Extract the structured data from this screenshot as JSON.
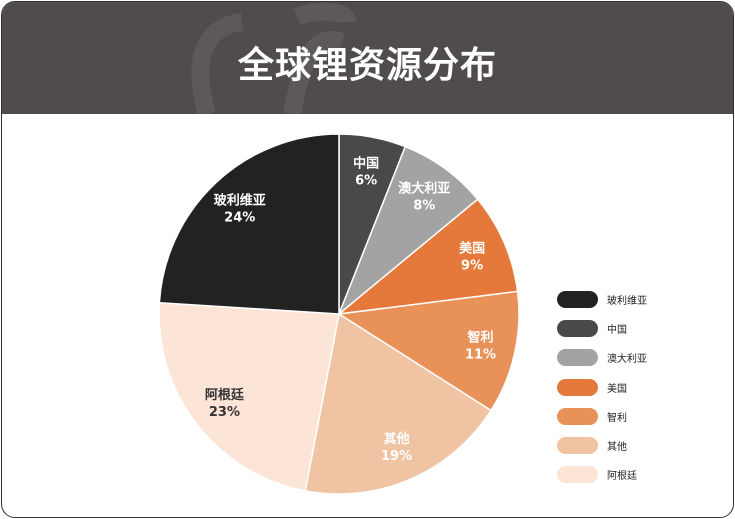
{
  "header": {
    "title": "全球锂资源分布"
  },
  "chart_data": {
    "type": "pie",
    "title": "全球锂资源分布",
    "start": "top",
    "direction": "clockwise",
    "slices": [
      {
        "label": "中国",
        "value": 6,
        "value_label": "6%",
        "color": "#4a4848"
      },
      {
        "label": "澳大利亚",
        "value": 8,
        "value_label": "8%",
        "color": "#a3a3a3"
      },
      {
        "label": "美国",
        "value": 9,
        "value_label": "9%",
        "color": "#e4793b"
      },
      {
        "label": "智利",
        "value": 11,
        "value_label": "11%",
        "color": "#e8925a"
      },
      {
        "label": "其他",
        "value": 19,
        "value_label": "19%",
        "color": "#f0c4a2"
      },
      {
        "label": "阿根廷",
        "value": 23,
        "value_label": "23%",
        "color": "#fce4d6"
      },
      {
        "label": "玻利维亚",
        "value": 24,
        "value_label": "24%",
        "color": "#222222"
      }
    ],
    "legend": {
      "placement": "right",
      "order": [
        "玻利维亚",
        "中国",
        "澳大利亚",
        "美国",
        "智利",
        "其他",
        "阿根廷"
      ]
    }
  }
}
